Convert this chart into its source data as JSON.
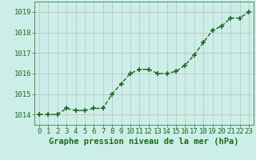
{
  "x": [
    0,
    1,
    2,
    3,
    4,
    5,
    6,
    7,
    8,
    9,
    10,
    11,
    12,
    13,
    14,
    15,
    16,
    17,
    18,
    19,
    20,
    21,
    22,
    23
  ],
  "y": [
    1014.0,
    1014.0,
    1014.0,
    1014.3,
    1014.2,
    1014.2,
    1014.3,
    1014.3,
    1015.0,
    1015.5,
    1016.0,
    1016.2,
    1016.2,
    1016.0,
    1016.0,
    1016.1,
    1016.4,
    1016.9,
    1017.5,
    1018.1,
    1018.3,
    1018.7,
    1018.7,
    1019.0
  ],
  "line_color": "#1e6b1e",
  "marker": "+",
  "marker_size": 5,
  "background_color": "#cceee8",
  "grid_color": "#bbbbbb",
  "xlabel": "Graphe pression niveau de la mer (hPa)",
  "xlabel_fontsize": 7.5,
  "ylim": [
    1013.5,
    1019.5
  ],
  "xlim": [
    -0.5,
    23.5
  ],
  "yticks": [
    1014,
    1015,
    1016,
    1017,
    1018,
    1019
  ],
  "xticks": [
    0,
    1,
    2,
    3,
    4,
    5,
    6,
    7,
    8,
    9,
    10,
    11,
    12,
    13,
    14,
    15,
    16,
    17,
    18,
    19,
    20,
    21,
    22,
    23
  ],
  "tick_fontsize": 6.5,
  "linewidth": 1.0,
  "linestyle": "--"
}
